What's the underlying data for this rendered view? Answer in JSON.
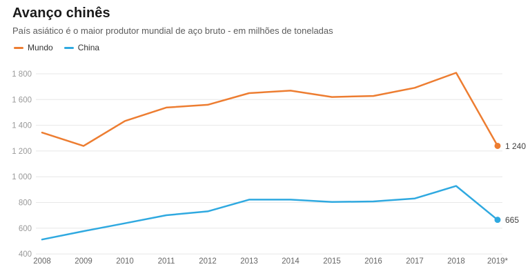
{
  "header": {
    "title": "Avanço chinês",
    "subtitle": "País asiático é o maior produtor mundial de aço bruto - em milhões de toneladas"
  },
  "colors": {
    "mundo_accent": "#ED7D31",
    "china_accent": "#2FA9E0",
    "gridline": "#e7e7e7",
    "ytick_text": "#999999",
    "xtick_text": "#666666",
    "end_label_text": "#404040"
  },
  "chart_data": {
    "type": "line",
    "x": [
      "2008",
      "2009",
      "2010",
      "2011",
      "2012",
      "2013",
      "2014",
      "2015",
      "2016",
      "2017",
      "2018",
      "2019*"
    ],
    "series": [
      {
        "name": "Mundo",
        "color": "#ED7D31",
        "values": [
          1343,
          1239,
          1433,
          1538,
          1559,
          1650,
          1669,
          1620,
          1628,
          1691,
          1808,
          1240
        ],
        "end_label": "1 240"
      },
      {
        "name": "China",
        "color": "#2FA9E0",
        "values": [
          512,
          577,
          638,
          701,
          731,
          822,
          822,
          804,
          808,
          831,
          928,
          665
        ],
        "end_label": "665"
      }
    ],
    "yticks": [
      400,
      600,
      800,
      1000,
      1200,
      1400,
      1600,
      1800
    ],
    "ytick_labels": [
      "400",
      "600",
      "800",
      "1 000",
      "1 200",
      "1 400",
      "1 600",
      "1 800"
    ],
    "ylim": [
      400,
      1891
    ],
    "grid": true,
    "legend_position": "top-left"
  }
}
